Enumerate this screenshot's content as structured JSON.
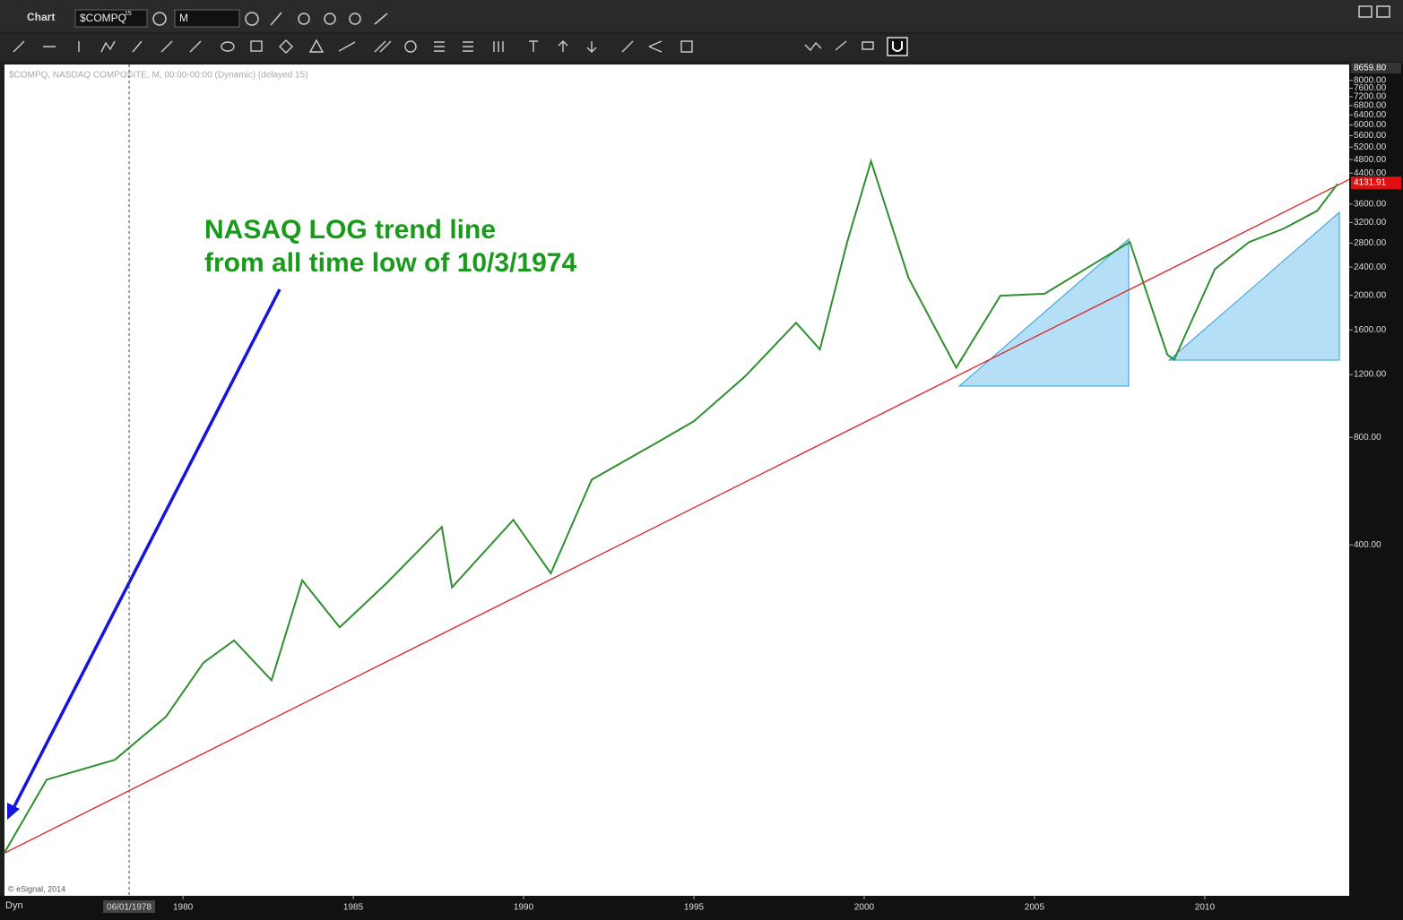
{
  "ui": {
    "window_title": "Chart",
    "symbol": "$COMPQ",
    "symbol_superscript": "15",
    "interval": "M",
    "chart_legend": "$COMPQ, NASDAQ COMPOSITE, M, 00:00-00:00 (Dynamic) (delayed 15)",
    "copyright": "© eSignal, 2014",
    "mode": "Dyn"
  },
  "chart_data": {
    "type": "line",
    "log_scale": true,
    "grid": false,
    "color": "#2f8f2f",
    "annotation": [
      "NASAQ LOG trend line",
      "from all time low of 10/3/1974"
    ],
    "x": [
      1974.76,
      1976,
      1978,
      1979.5,
      1980.6,
      1981.5,
      1982.6,
      1983.5,
      1984.6,
      1986,
      1987.6,
      1987.9,
      1989.7,
      1990.8,
      1992,
      1994,
      1995,
      1996.5,
      1998,
      1998.7,
      1999.5,
      2000.2,
      2001.3,
      2002.7,
      2004,
      2005.3,
      2007.8,
      2008.9,
      2009.1,
      2010.3,
      2011.3,
      2012.3,
      2013.3,
      2013.9
    ],
    "values": [
      55,
      88,
      100,
      132,
      187,
      216,
      167,
      318,
      235,
      314,
      449,
      304,
      470,
      333,
      609,
      782,
      888,
      1185,
      1676,
      1411,
      2820,
      4750,
      2240,
      1255,
      1995,
      2020,
      2820,
      1364,
      1320,
      2370,
      2820,
      3070,
      3450,
      4105
    ],
    "trend_line": {
      "color": "#e02020",
      "x": [
        1974.76,
        2014.24
      ],
      "values": [
        54.8,
        4222
      ]
    },
    "xlim": [
      1974.76,
      2014.24
    ],
    "xticks": [
      1980,
      1985,
      1990,
      1995,
      2000,
      2005,
      2010
    ],
    "cursor": {
      "value": 1978.42,
      "label": "06/01/1978"
    },
    "ylim": [
      41.6,
      8659.8
    ],
    "yticks": [
      {
        "value": 400,
        "label": "400.00"
      },
      {
        "value": 800,
        "label": "800.00"
      },
      {
        "value": 1200,
        "label": "1200.00"
      },
      {
        "value": 1600,
        "label": "1600.00"
      },
      {
        "value": 2000,
        "label": "2000.00"
      },
      {
        "value": 2400,
        "label": "2400.00"
      },
      {
        "value": 2800,
        "label": "2800.00"
      },
      {
        "value": 3200,
        "label": "3200.00"
      },
      {
        "value": 3600,
        "label": "3600.00"
      },
      {
        "value": 4400,
        "label": "4400.00"
      },
      {
        "value": 4800,
        "label": "4800.00"
      },
      {
        "value": 5200,
        "label": "5200.00"
      },
      {
        "value": 5600,
        "label": "5600.00"
      },
      {
        "value": 6000,
        "label": "6000.00"
      },
      {
        "value": 6400,
        "label": "6400.00"
      },
      {
        "value": 6800,
        "label": "6800.00"
      },
      {
        "value": 7200,
        "label": "7200.00"
      },
      {
        "value": 7600,
        "label": "7600.00"
      },
      {
        "value": 8000,
        "label": "8000.00"
      }
    ],
    "y_max_label": {
      "value": 8659.8,
      "label": "8659.80"
    },
    "last_price": 4131.91
  }
}
